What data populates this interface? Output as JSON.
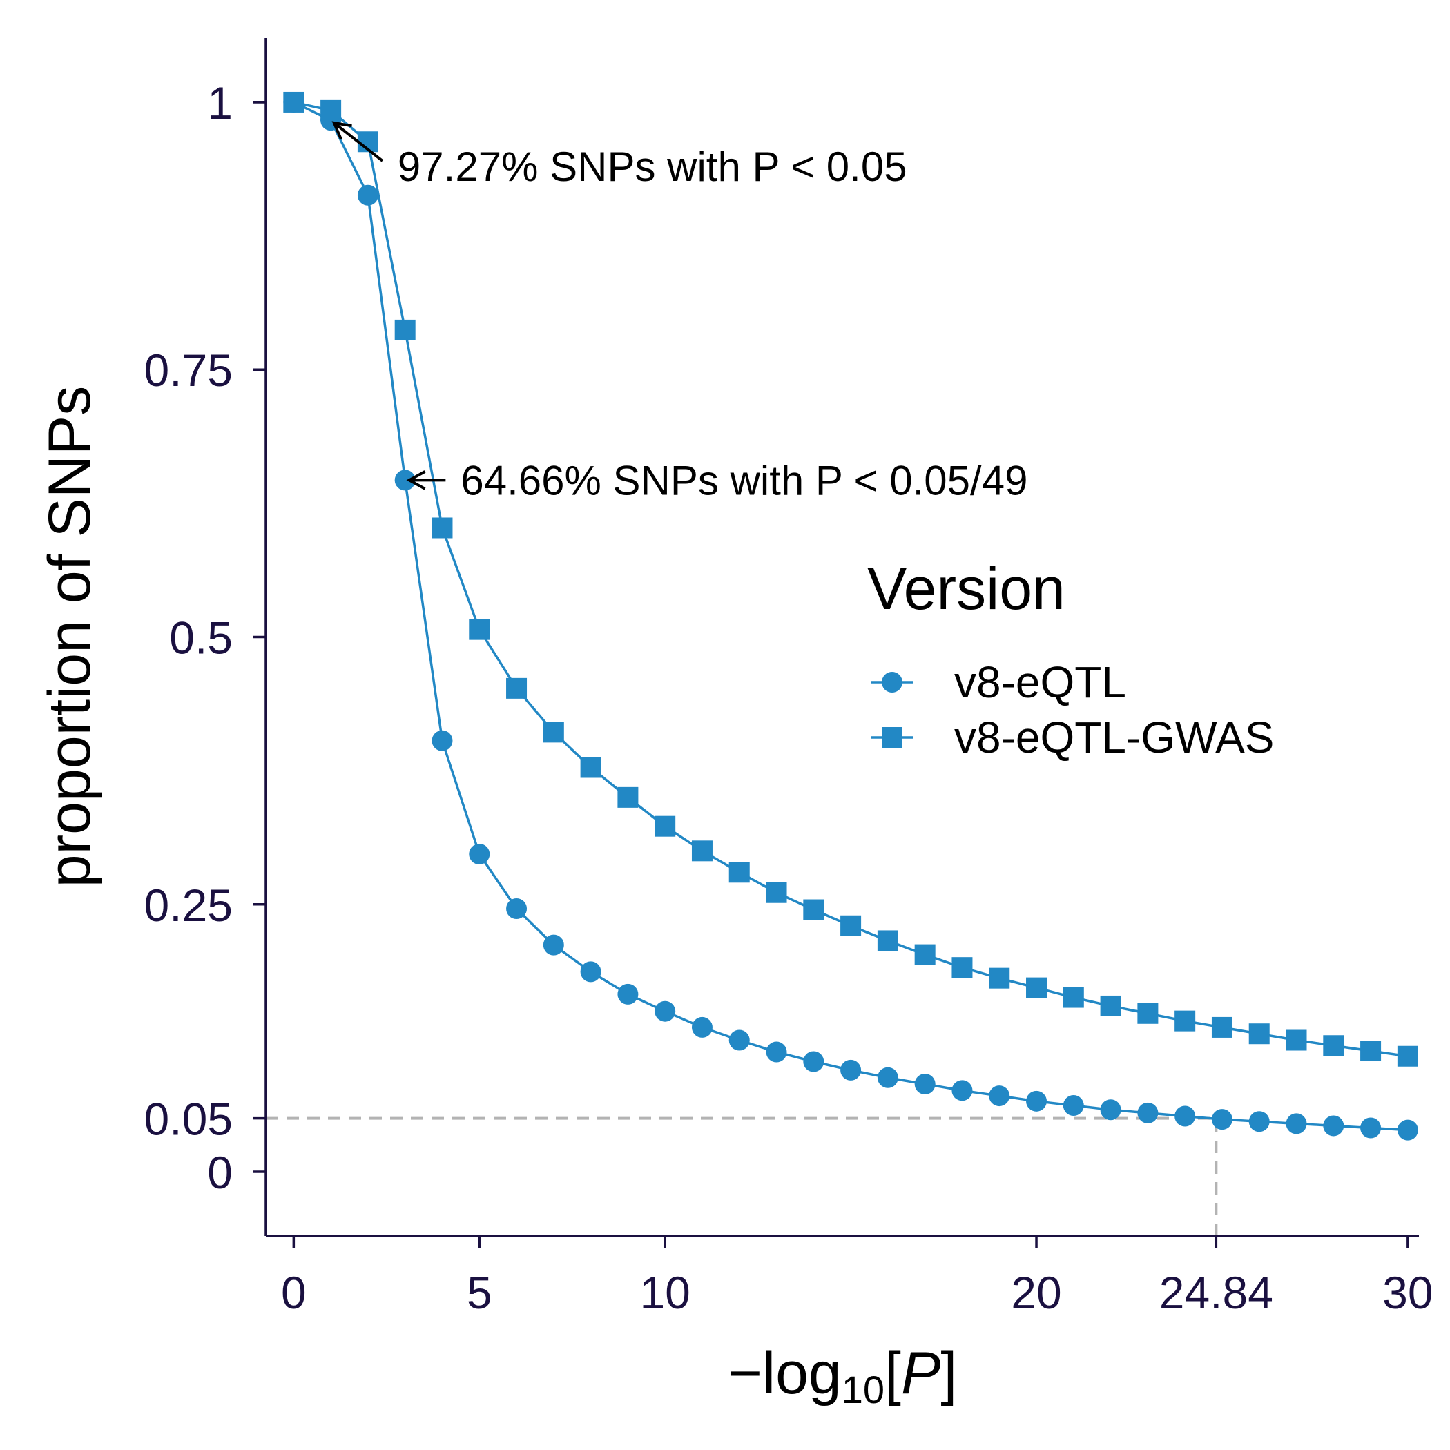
{
  "chart_data": {
    "type": "line",
    "title": "",
    "xlabel_prefix": "−log",
    "xlabel_sub": "10",
    "xlabel_var": "P",
    "ylabel": "proportion of SNPs",
    "xlim": [
      -0.75,
      30.3
    ],
    "ylim": [
      -0.06,
      1.06
    ],
    "x_ticks": [
      0,
      5,
      10,
      20,
      24.84,
      30
    ],
    "x_tick_labels": [
      "0",
      "5",
      "10",
      "20",
      "24.84",
      "30"
    ],
    "y_ticks": [
      0,
      0.05,
      0.25,
      0.5,
      0.75,
      1
    ],
    "y_tick_labels": [
      "0",
      "0.05",
      "0.25",
      "0.5",
      "0.75",
      "1"
    ],
    "x": [
      0,
      1,
      2,
      3,
      4,
      5,
      6,
      7,
      8,
      9,
      10,
      11,
      12,
      13,
      14,
      15,
      16,
      17,
      18,
      19,
      20,
      21,
      22,
      23,
      24,
      25,
      26,
      27,
      28,
      29,
      30
    ],
    "series": [
      {
        "name": "v8-eQTL",
        "marker": "circle",
        "color": "#2288c5",
        "values": [
          1.0,
          0.983,
          0.913,
          0.6466,
          0.403,
          0.297,
          0.246,
          0.212,
          0.187,
          0.166,
          0.15,
          0.135,
          0.123,
          0.112,
          0.103,
          0.095,
          0.088,
          0.082,
          0.076,
          0.071,
          0.066,
          0.062,
          0.058,
          0.055,
          0.052,
          0.049,
          0.047,
          0.045,
          0.043,
          0.041,
          0.039
        ]
      },
      {
        "name": "v8-eQTL-GWAS",
        "marker": "square",
        "color": "#2288c5",
        "values": [
          1.0,
          0.9923,
          0.963,
          0.787,
          0.602,
          0.507,
          0.452,
          0.411,
          0.378,
          0.35,
          0.323,
          0.3,
          0.28,
          0.261,
          0.245,
          0.23,
          0.216,
          0.203,
          0.191,
          0.181,
          0.172,
          0.163,
          0.155,
          0.148,
          0.141,
          0.135,
          0.129,
          0.123,
          0.118,
          0.113,
          0.108
        ]
      }
    ],
    "reference_lines": [
      {
        "type": "horizontal",
        "y": 0.05,
        "x_from": -0.75,
        "x_to": 24.84,
        "style": "dashed",
        "color": "#b3b3b3"
      },
      {
        "type": "vertical",
        "x": 24.84,
        "y_from": -0.06,
        "y_to": 0.05,
        "style": "dashed",
        "color": "#b3b3b3"
      }
    ],
    "annotations": [
      {
        "text": "97.27% SNPs with P < 0.05",
        "arrow_to": [
          1,
          0.983
        ],
        "text_at": [
          2.8,
          0.94
        ]
      },
      {
        "text": "64.66% SNPs with P < 0.05/49",
        "arrow_to": [
          3,
          0.6466
        ],
        "text_at": [
          4.5,
          0.6466
        ]
      }
    ],
    "legend": {
      "title": "Version",
      "position": "right",
      "entries": [
        "v8-eQTL",
        "v8-eQTL-GWAS"
      ]
    },
    "grid": false,
    "axis_color": "#1a1040"
  }
}
